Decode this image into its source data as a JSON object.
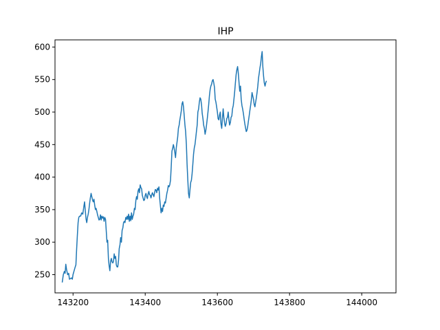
{
  "chart_data": {
    "type": "line",
    "title": "IHP",
    "xlabel": "",
    "ylabel": "",
    "xlim": [
      143150,
      144095
    ],
    "ylim": [
      222,
      611
    ],
    "grid": false,
    "x_ticks": [
      143200,
      143400,
      143600,
      143800,
      144000
    ],
    "y_ticks": [
      250,
      300,
      350,
      400,
      450,
      500,
      550,
      600
    ],
    "series": [
      {
        "color": "#1f77b4",
        "points": [
          [
            143170,
            238
          ],
          [
            143173,
            250
          ],
          [
            143176,
            255
          ],
          [
            143178,
            252
          ],
          [
            143180,
            266
          ],
          [
            143182,
            258
          ],
          [
            143185,
            250
          ],
          [
            143188,
            252
          ],
          [
            143190,
            243
          ],
          [
            143193,
            244
          ],
          [
            143196,
            245
          ],
          [
            143198,
            243
          ],
          [
            143200,
            250
          ],
          [
            143203,
            256
          ],
          [
            143206,
            262
          ],
          [
            143208,
            265
          ],
          [
            143210,
            290
          ],
          [
            143212,
            310
          ],
          [
            143214,
            330
          ],
          [
            143216,
            338
          ],
          [
            143218,
            340
          ],
          [
            143221,
            340
          ],
          [
            143224,
            345
          ],
          [
            143227,
            343
          ],
          [
            143230,
            355
          ],
          [
            143232,
            362
          ],
          [
            143234,
            348
          ],
          [
            143236,
            336
          ],
          [
            143238,
            330
          ],
          [
            143240,
            338
          ],
          [
            143242,
            343
          ],
          [
            143244,
            350
          ],
          [
            143246,
            360
          ],
          [
            143248,
            368
          ],
          [
            143250,
            375
          ],
          [
            143252,
            370
          ],
          [
            143254,
            365
          ],
          [
            143256,
            362
          ],
          [
            143258,
            366
          ],
          [
            143260,
            357
          ],
          [
            143262,
            350
          ],
          [
            143264,
            352
          ],
          [
            143266,
            347
          ],
          [
            143268,
            342
          ],
          [
            143270,
            338
          ],
          [
            143272,
            334
          ],
          [
            143274,
            335
          ],
          [
            143276,
            342
          ],
          [
            143278,
            334
          ],
          [
            143280,
            340
          ],
          [
            143282,
            337
          ],
          [
            143284,
            339
          ],
          [
            143286,
            332
          ],
          [
            143288,
            338
          ],
          [
            143290,
            335
          ],
          [
            143292,
            318
          ],
          [
            143294,
            300
          ],
          [
            143296,
            303
          ],
          [
            143298,
            275
          ],
          [
            143300,
            264
          ],
          [
            143302,
            256
          ],
          [
            143304,
            270
          ],
          [
            143306,
            275
          ],
          [
            143308,
            270
          ],
          [
            143310,
            268
          ],
          [
            143312,
            270
          ],
          [
            143314,
            282
          ],
          [
            143316,
            275
          ],
          [
            143318,
            278
          ],
          [
            143320,
            265
          ],
          [
            143322,
            262
          ],
          [
            143324,
            262
          ],
          [
            143326,
            272
          ],
          [
            143328,
            290
          ],
          [
            143330,
            296
          ],
          [
            143332,
            307
          ],
          [
            143334,
            300
          ],
          [
            143336,
            318
          ],
          [
            143338,
            322
          ],
          [
            143340,
            330
          ],
          [
            143342,
            332
          ],
          [
            143344,
            330
          ],
          [
            143346,
            338
          ],
          [
            143348,
            335
          ],
          [
            143350,
            340
          ],
          [
            143352,
            335
          ],
          [
            143354,
            343
          ],
          [
            143356,
            332
          ],
          [
            143358,
            340
          ],
          [
            143360,
            333
          ],
          [
            143362,
            345
          ],
          [
            143364,
            335
          ],
          [
            143366,
            340
          ],
          [
            143368,
            343
          ],
          [
            143370,
            352
          ],
          [
            143372,
            350
          ],
          [
            143374,
            364
          ],
          [
            143376,
            370
          ],
          [
            143378,
            366
          ],
          [
            143380,
            378
          ],
          [
            143382,
            382
          ],
          [
            143384,
            376
          ],
          [
            143386,
            388
          ],
          [
            143388,
            384
          ],
          [
            143390,
            382
          ],
          [
            143392,
            372
          ],
          [
            143394,
            368
          ],
          [
            143396,
            364
          ],
          [
            143398,
            365
          ],
          [
            143400,
            372
          ],
          [
            143402,
            375
          ],
          [
            143404,
            370
          ],
          [
            143406,
            367
          ],
          [
            143408,
            374
          ],
          [
            143410,
            378
          ],
          [
            143412,
            373
          ],
          [
            143414,
            372
          ],
          [
            143416,
            368
          ],
          [
            143418,
            373
          ],
          [
            143420,
            376
          ],
          [
            143422,
            373
          ],
          [
            143424,
            370
          ],
          [
            143426,
            376
          ],
          [
            143428,
            381
          ],
          [
            143430,
            380
          ],
          [
            143432,
            376
          ],
          [
            143434,
            383
          ],
          [
            143436,
            380
          ],
          [
            143438,
            385
          ],
          [
            143440,
            368
          ],
          [
            143442,
            356
          ],
          [
            143444,
            345
          ],
          [
            143446,
            352
          ],
          [
            143448,
            347
          ],
          [
            143450,
            357
          ],
          [
            143452,
            355
          ],
          [
            143454,
            362
          ],
          [
            143456,
            360
          ],
          [
            143458,
            368
          ],
          [
            143460,
            375
          ],
          [
            143462,
            380
          ],
          [
            143464,
            387
          ],
          [
            143466,
            385
          ],
          [
            143468,
            388
          ],
          [
            143470,
            395
          ],
          [
            143472,
            415
          ],
          [
            143474,
            440
          ],
          [
            143476,
            444
          ],
          [
            143478,
            450
          ],
          [
            143480,
            445
          ],
          [
            143482,
            438
          ],
          [
            143484,
            430
          ],
          [
            143486,
            445
          ],
          [
            143488,
            453
          ],
          [
            143490,
            462
          ],
          [
            143492,
            475
          ],
          [
            143494,
            480
          ],
          [
            143496,
            488
          ],
          [
            143498,
            495
          ],
          [
            143500,
            502
          ],
          [
            143502,
            513
          ],
          [
            143504,
            516
          ],
          [
            143506,
            508
          ],
          [
            143508,
            495
          ],
          [
            143510,
            480
          ],
          [
            143512,
            470
          ],
          [
            143514,
            450
          ],
          [
            143516,
            420
          ],
          [
            143518,
            395
          ],
          [
            143520,
            375
          ],
          [
            143522,
            368
          ],
          [
            143524,
            380
          ],
          [
            143526,
            392
          ],
          [
            143528,
            395
          ],
          [
            143530,
            405
          ],
          [
            143532,
            420
          ],
          [
            143534,
            435
          ],
          [
            143536,
            445
          ],
          [
            143538,
            450
          ],
          [
            143540,
            460
          ],
          [
            143542,
            470
          ],
          [
            143544,
            480
          ],
          [
            143546,
            500
          ],
          [
            143548,
            505
          ],
          [
            143550,
            515
          ],
          [
            143552,
            522
          ],
          [
            143554,
            520
          ],
          [
            143556,
            512
          ],
          [
            143558,
            498
          ],
          [
            143560,
            490
          ],
          [
            143562,
            480
          ],
          [
            143564,
            475
          ],
          [
            143566,
            466
          ],
          [
            143568,
            472
          ],
          [
            143570,
            480
          ],
          [
            143572,
            490
          ],
          [
            143574,
            500
          ],
          [
            143576,
            512
          ],
          [
            143578,
            525
          ],
          [
            143580,
            535
          ],
          [
            143582,
            540
          ],
          [
            143584,
            543
          ],
          [
            143586,
            548
          ],
          [
            143588,
            550
          ],
          [
            143590,
            545
          ],
          [
            143592,
            538
          ],
          [
            143594,
            520
          ],
          [
            143596,
            515
          ],
          [
            143598,
            508
          ],
          [
            143600,
            500
          ],
          [
            143602,
            490
          ],
          [
            143604,
            488
          ],
          [
            143606,
            495
          ],
          [
            143608,
            500
          ],
          [
            143610,
            482
          ],
          [
            143612,
            475
          ],
          [
            143614,
            490
          ],
          [
            143616,
            505
          ],
          [
            143618,
            492
          ],
          [
            143620,
            483
          ],
          [
            143622,
            478
          ],
          [
            143624,
            482
          ],
          [
            143626,
            490
          ],
          [
            143628,
            492
          ],
          [
            143630,
            500
          ],
          [
            143632,
            488
          ],
          [
            143634,
            480
          ],
          [
            143636,
            484
          ],
          [
            143638,
            492
          ],
          [
            143640,
            494
          ],
          [
            143642,
            505
          ],
          [
            143644,
            510
          ],
          [
            143646,
            520
          ],
          [
            143648,
            532
          ],
          [
            143650,
            545
          ],
          [
            143652,
            558
          ],
          [
            143654,
            565
          ],
          [
            143656,
            570
          ],
          [
            143658,
            560
          ],
          [
            143660,
            545
          ],
          [
            143662,
            532
          ],
          [
            143664,
            540
          ],
          [
            143666,
            520
          ],
          [
            143668,
            510
          ],
          [
            143670,
            505
          ],
          [
            143672,
            498
          ],
          [
            143674,
            490
          ],
          [
            143676,
            482
          ],
          [
            143678,
            476
          ],
          [
            143680,
            470
          ],
          [
            143682,
            472
          ],
          [
            143684,
            478
          ],
          [
            143686,
            486
          ],
          [
            143688,
            494
          ],
          [
            143690,
            502
          ],
          [
            143692,
            510
          ],
          [
            143694,
            518
          ],
          [
            143696,
            530
          ],
          [
            143698,
            525
          ],
          [
            143700,
            520
          ],
          [
            143702,
            512
          ],
          [
            143704,
            508
          ],
          [
            143706,
            515
          ],
          [
            143708,
            522
          ],
          [
            143710,
            530
          ],
          [
            143712,
            540
          ],
          [
            143714,
            552
          ],
          [
            143716,
            560
          ],
          [
            143718,
            568
          ],
          [
            143720,
            575
          ],
          [
            143722,
            585
          ],
          [
            143724,
            593
          ],
          [
            143726,
            570
          ],
          [
            143728,
            555
          ],
          [
            143730,
            545
          ],
          [
            143732,
            540
          ],
          [
            143734,
            545
          ],
          [
            143736,
            548
          ]
        ]
      }
    ]
  }
}
